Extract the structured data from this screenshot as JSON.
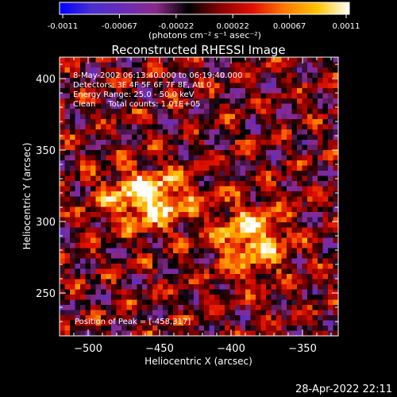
{
  "colorbar": {
    "ticks": [
      "-0.0011",
      "-0.00067",
      "-0.00022",
      "0.00022",
      "0.00067",
      "0.0011"
    ],
    "units_label": "(photons cm⁻² s⁻¹ asec⁻²)",
    "gradient": [
      "#0000ff",
      "#4b2fd0",
      "#6a2cb5",
      "#8a2a8a",
      "#000000",
      "#8a0000",
      "#e01000",
      "#ff7a00",
      "#ffc400",
      "#ffffff"
    ]
  },
  "chart_data": {
    "type": "heatmap",
    "title": "Reconstructed RHESSI Image",
    "xlabel": "Heliocentric X (arcsec)",
    "ylabel": "Heliocentric Y (arcsec)",
    "xlim": [
      -520,
      -325
    ],
    "ylim": [
      220,
      415
    ],
    "x_ticks": [
      -500,
      -450,
      -400,
      -350
    ],
    "y_ticks": [
      250,
      300,
      350,
      400
    ],
    "x_tick_labels": [
      "−500",
      "−450",
      "−400",
      "−350"
    ],
    "y_tick_labels": [
      "250",
      "300",
      "350",
      "400"
    ],
    "sources": [
      {
        "x": -458,
        "y": 317,
        "peak": 0.0011,
        "sx": 22,
        "sy": 14
      },
      {
        "x": -385,
        "y": 288,
        "peak": 0.0009,
        "sx": 18,
        "sy": 17
      }
    ],
    "annotations": [
      " 8-May-2002 06:13:40.000 to 06:19:40.000",
      "Detectors: 3F 4F 5F 6F 7F 8F, Att 0",
      "Energy Range: 25.0 - 50.0 keV",
      "Clean     Total counts: 1.01E+05"
    ],
    "peak_label": "Position of Peak = [-458,317]"
  },
  "footer": {
    "timestamp": "28-Apr-2022 22:11"
  }
}
